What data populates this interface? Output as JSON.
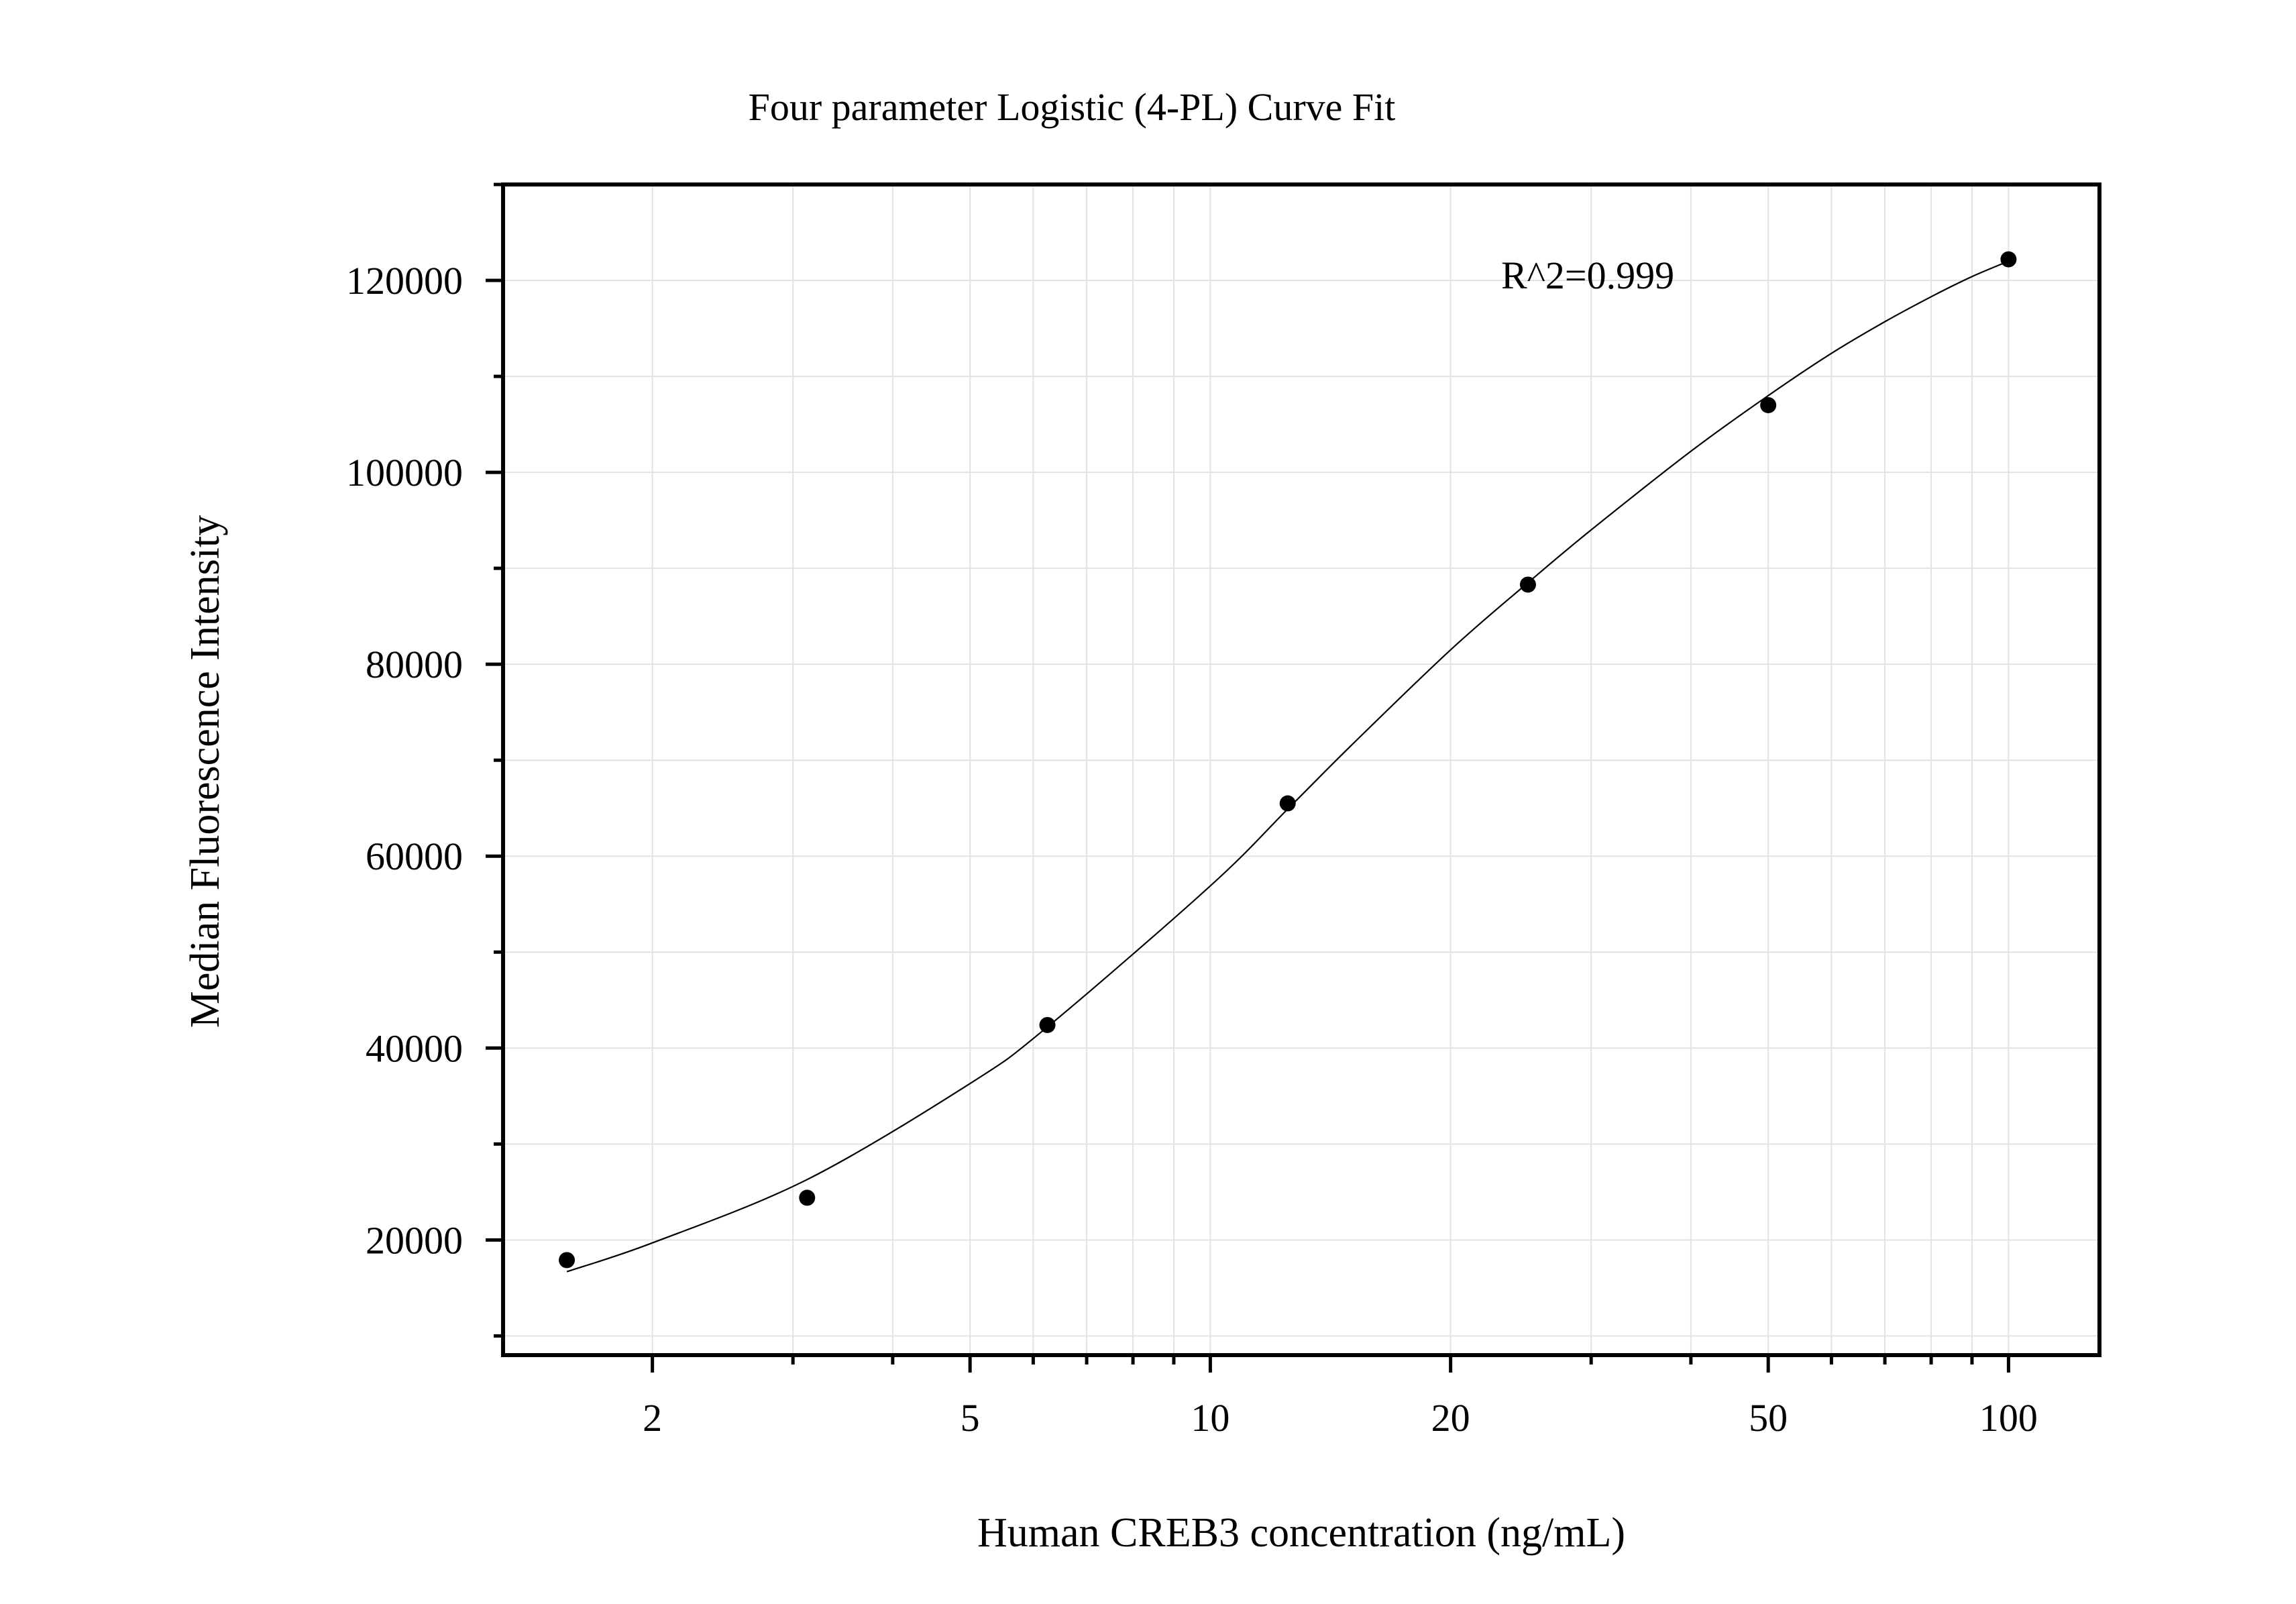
{
  "chart_data": {
    "type": "scatter",
    "title": "Four parameter Logistic (4-PL) Curve Fit",
    "xlabel": "Human CREB3 concentration (ng/mL)",
    "ylabel": "Median Fluorescence Intensity",
    "x_scale": "log",
    "xlim": [
      1.3,
      130
    ],
    "ylim": [
      8000,
      130000
    ],
    "x_ticks": [
      2,
      5,
      10,
      20,
      50,
      100
    ],
    "x_tick_labels": [
      "2",
      "5",
      "10",
      "20",
      "50",
      "100"
    ],
    "y_ticks": [
      20000,
      40000,
      60000,
      80000,
      100000,
      120000
    ],
    "y_tick_labels": [
      "20000",
      "40000",
      "60000",
      "80000",
      "100000",
      "120000"
    ],
    "grid": true,
    "annotation": "R^2=0.999",
    "series": [
      {
        "x": [
          1.5625,
          3.125,
          6.25,
          12.5,
          25,
          50,
          100
        ],
        "y": [
          17900,
          24400,
          42400,
          65500,
          88300,
          107000,
          122200
        ]
      }
    ],
    "fit_curve": [
      {
        "x": 1.5625,
        "y": 16700
      },
      {
        "x": 2,
        "y": 19700
      },
      {
        "x": 3.125,
        "y": 26300
      },
      {
        "x": 5,
        "y": 36300
      },
      {
        "x": 6.25,
        "y": 42200
      },
      {
        "x": 10,
        "y": 56900
      },
      {
        "x": 12.5,
        "y": 64900
      },
      {
        "x": 15,
        "y": 71500
      },
      {
        "x": 20,
        "y": 81500
      },
      {
        "x": 25,
        "y": 88500
      },
      {
        "x": 30,
        "y": 94000
      },
      {
        "x": 40,
        "y": 102200
      },
      {
        "x": 50,
        "y": 108000
      },
      {
        "x": 60,
        "y": 112400
      },
      {
        "x": 70,
        "y": 115700
      },
      {
        "x": 80,
        "y": 118300
      },
      {
        "x": 90,
        "y": 120400
      },
      {
        "x": 100,
        "y": 122000
      }
    ],
    "colors": {
      "points": "#000000",
      "curve": "#000000",
      "grid": "#e3e3e3",
      "frame": "#000000"
    }
  }
}
